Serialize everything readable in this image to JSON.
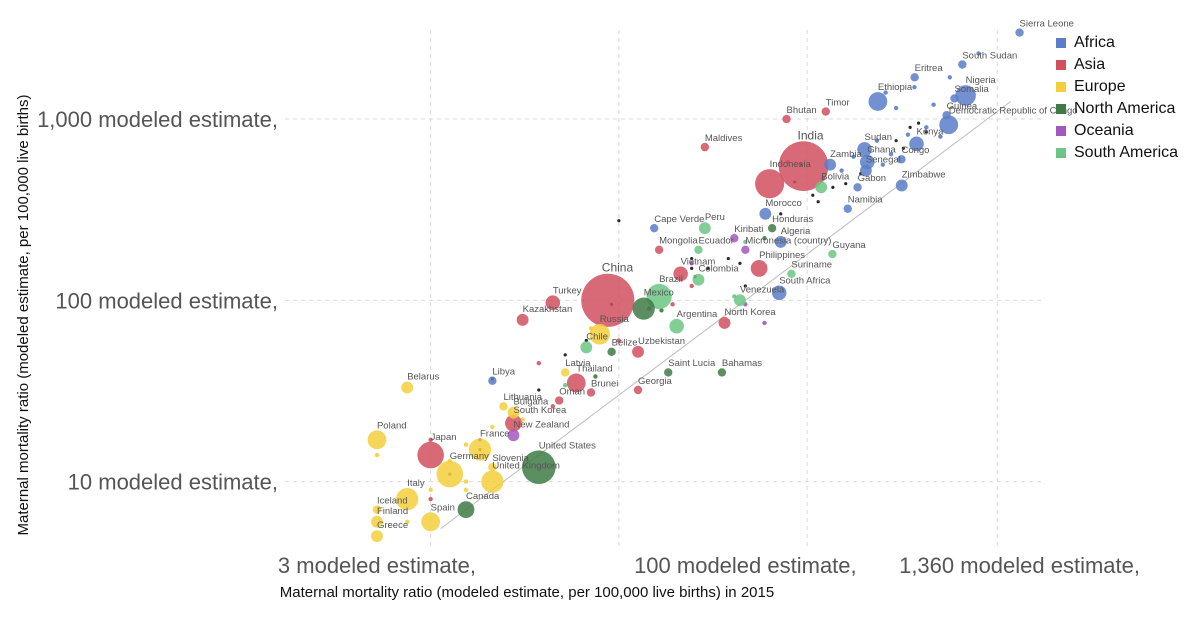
{
  "chart_data": {
    "type": "scatter",
    "title": "",
    "xlabel": "Maternal mortality ratio (modeled estimate, per 100,000 live births) in 2015",
    "ylabel": "Maternal mortality ratio (modeled estimate, per 100,000 live births)",
    "x_scale": "log",
    "y_scale": "log",
    "xlim": [
      1.25,
      1700
    ],
    "ylim": [
      4.3,
      3100
    ],
    "x_ticks": [
      {
        "value": 3,
        "label": "3 modeled estimate,"
      },
      {
        "value": 100,
        "label": "100 modeled estimate,"
      },
      {
        "value": 1360,
        "label": "1,360 modeled estimate,"
      }
    ],
    "y_ticks": [
      {
        "value": 10,
        "label": "10 modeled estimate,"
      },
      {
        "value": 100,
        "label": "100 modeled estimate,"
      },
      {
        "value": 1000,
        "label": "1,000 modeled estimate,"
      }
    ],
    "x_gridlines": [
      5,
      30,
      180,
      1100
    ],
    "y_gridlines": [
      10,
      100,
      1000
    ],
    "reference_line": "y = x",
    "legend_position": "top-right",
    "colors": {
      "Africa": "#5b7ec8",
      "Asia": "#d1505f",
      "Europe": "#f4cf3b",
      "North America": "#3e7a45",
      "Oceania": "#a358bd",
      "South America": "#6cc585",
      "Unlabeled": "#111111"
    },
    "legend": [
      "Africa",
      "Asia",
      "Europe",
      "North America",
      "Oceania",
      "South America"
    ],
    "points": [
      {
        "label": "Sierra Leone",
        "region": "Africa",
        "x": 1360,
        "y": 3000,
        "size": 1
      },
      {
        "label": "South Sudan",
        "region": "Africa",
        "x": 789,
        "y": 2000,
        "size": 1
      },
      {
        "label": "Nigeria",
        "region": "Africa",
        "x": 814,
        "y": 1350,
        "size": 6
      },
      {
        "label": "Somalia",
        "region": "Africa",
        "x": 732,
        "y": 1300,
        "size": 1
      },
      {
        "label": "Eritrea",
        "region": "Africa",
        "x": 501,
        "y": 1700,
        "size": 1
      },
      {
        "label": "Ethiopia",
        "region": "Africa",
        "x": 353,
        "y": 1250,
        "size": 5
      },
      {
        "label": "Guinea",
        "region": "Africa",
        "x": 679,
        "y": 1050,
        "size": 1
      },
      {
        "label": "Democratic Republic of Congo",
        "region": "Africa",
        "x": 693,
        "y": 930,
        "size": 5
      },
      {
        "label": "Timor",
        "region": "Asia",
        "x": 215,
        "y": 1100,
        "size": 1
      },
      {
        "label": "Bhutan",
        "region": "Asia",
        "x": 148,
        "y": 1000,
        "size": 1
      },
      {
        "label": "Maldives",
        "region": "Asia",
        "x": 68,
        "y": 700,
        "size": 1
      },
      {
        "label": "India",
        "region": "Asia",
        "x": 174,
        "y": 550,
        "size": 35
      },
      {
        "label": "Kenya",
        "region": "Africa",
        "x": 510,
        "y": 730,
        "size": 3
      },
      {
        "label": "Sudan",
        "region": "Africa",
        "x": 311,
        "y": 680,
        "size": 3
      },
      {
        "label": "Ghana",
        "region": "Africa",
        "x": 319,
        "y": 580,
        "size": 3
      },
      {
        "label": "Congo",
        "region": "Africa",
        "x": 442,
        "y": 600,
        "size": 1
      },
      {
        "label": "Senegal",
        "region": "Africa",
        "x": 315,
        "y": 520,
        "size": 2
      },
      {
        "label": "Zambia",
        "region": "Africa",
        "x": 224,
        "y": 560,
        "size": 2
      },
      {
        "label": "Indonesia",
        "region": "Asia",
        "x": 126,
        "y": 440,
        "size": 12
      },
      {
        "label": "Bolivia",
        "region": "South America",
        "x": 206,
        "y": 420,
        "size": 2
      },
      {
        "label": "Gabon",
        "region": "Africa",
        "x": 291,
        "y": 420,
        "size": 1
      },
      {
        "label": "Zimbabwe",
        "region": "Africa",
        "x": 443,
        "y": 430,
        "size": 2
      },
      {
        "label": "Namibia",
        "region": "Africa",
        "x": 265,
        "y": 320,
        "size": 1
      },
      {
        "label": "Morocco",
        "region": "Africa",
        "x": 121,
        "y": 300,
        "size": 2
      },
      {
        "label": "Honduras",
        "region": "North America",
        "x": 129,
        "y": 250,
        "size": 1
      },
      {
        "label": "Cape Verde",
        "region": "Africa",
        "x": 42,
        "y": 250,
        "size": 1
      },
      {
        "label": "Peru",
        "region": "South America",
        "x": 68,
        "y": 250,
        "size": 2
      },
      {
        "label": "Kiribati",
        "region": "Oceania",
        "x": 90,
        "y": 220,
        "size": 1
      },
      {
        "label": "Algeria",
        "region": "Africa",
        "x": 140,
        "y": 210,
        "size": 2
      },
      {
        "label": "Mongolia",
        "region": "Asia",
        "x": 44,
        "y": 190,
        "size": 1
      },
      {
        "label": "Ecuador",
        "region": "South America",
        "x": 64,
        "y": 190,
        "size": 1
      },
      {
        "label": "Micronesia (country)",
        "region": "Oceania",
        "x": 100,
        "y": 190,
        "size": 1
      },
      {
        "label": "Guyana",
        "region": "South America",
        "x": 229,
        "y": 180,
        "size": 1
      },
      {
        "label": "Philippines",
        "region": "Asia",
        "x": 114,
        "y": 150,
        "size": 4
      },
      {
        "label": "Vietnam",
        "region": "Asia",
        "x": 54,
        "y": 140,
        "size": 3
      },
      {
        "label": "Colombia",
        "region": "South America",
        "x": 64,
        "y": 130,
        "size": 2
      },
      {
        "label": "Suriname",
        "region": "South America",
        "x": 155,
        "y": 140,
        "size": 1
      },
      {
        "label": "South Africa",
        "region": "Africa",
        "x": 138,
        "y": 110,
        "size": 3
      },
      {
        "label": "China",
        "region": "Asia",
        "x": 27,
        "y": 100,
        "size": 40
      },
      {
        "label": "Brazil",
        "region": "South America",
        "x": 44,
        "y": 105,
        "size": 9
      },
      {
        "label": "Mexico",
        "region": "North America",
        "x": 38,
        "y": 90,
        "size": 7
      },
      {
        "label": "Venezuela",
        "region": "South America",
        "x": 95,
        "y": 100,
        "size": 2
      },
      {
        "label": "Turkey",
        "region": "Asia",
        "x": 16,
        "y": 97,
        "size": 3
      },
      {
        "label": "Kazakhstan",
        "region": "Asia",
        "x": 12,
        "y": 78,
        "size": 2
      },
      {
        "label": "Argentina",
        "region": "South America",
        "x": 52,
        "y": 72,
        "size": 3
      },
      {
        "label": "North Korea",
        "region": "Asia",
        "x": 82,
        "y": 75,
        "size": 2
      },
      {
        "label": "Russia",
        "region": "Europe",
        "x": 25,
        "y": 65,
        "size": 6
      },
      {
        "label": "Chile",
        "region": "South America",
        "x": 22,
        "y": 55,
        "size": 2
      },
      {
        "label": "Belize",
        "region": "North America",
        "x": 28,
        "y": 52,
        "size": 1
      },
      {
        "label": "Uzbekistan",
        "region": "Asia",
        "x": 36,
        "y": 52,
        "size": 2
      },
      {
        "label": "Saint Lucia",
        "region": "North America",
        "x": 48,
        "y": 40,
        "size": 1
      },
      {
        "label": "Bahamas",
        "region": "North America",
        "x": 80,
        "y": 40,
        "size": 1
      },
      {
        "label": "Latvia",
        "region": "Europe",
        "x": 18,
        "y": 40,
        "size": 1
      },
      {
        "label": "Thailand",
        "region": "Asia",
        "x": 20,
        "y": 35,
        "size": 5
      },
      {
        "label": "Brunei",
        "region": "Asia",
        "x": 23,
        "y": 31,
        "size": 1
      },
      {
        "label": "Georgia",
        "region": "Asia",
        "x": 36,
        "y": 32,
        "size": 1
      },
      {
        "label": "Libya",
        "region": "Africa",
        "x": 9,
        "y": 36,
        "size": 1
      },
      {
        "label": "Belarus",
        "region": "Europe",
        "x": 4,
        "y": 33,
        "size": 2
      },
      {
        "label": "Oman",
        "region": "Asia",
        "x": 17,
        "y": 28,
        "size": 1
      },
      {
        "label": "Lithuania",
        "region": "Europe",
        "x": 10,
        "y": 26,
        "size": 1
      },
      {
        "label": "Bulgaria",
        "region": "Europe",
        "x": 11,
        "y": 24,
        "size": 2
      },
      {
        "label": "South Korea",
        "region": "Asia",
        "x": 11,
        "y": 21,
        "size": 4
      },
      {
        "label": "New Zealand",
        "region": "Oceania",
        "x": 11,
        "y": 18,
        "size": 2
      },
      {
        "label": "Poland",
        "region": "Europe",
        "x": 3,
        "y": 17,
        "size": 5
      },
      {
        "label": "France",
        "region": "Europe",
        "x": 8,
        "y": 15,
        "size": 7
      },
      {
        "label": "Japan",
        "region": "Asia",
        "x": 5,
        "y": 14,
        "size": 10
      },
      {
        "label": "United States",
        "region": "North America",
        "x": 14,
        "y": 12,
        "size": 16
      },
      {
        "label": "Slovenia",
        "region": "Europe",
        "x": 9,
        "y": 12,
        "size": 1
      },
      {
        "label": "Germany",
        "region": "Europe",
        "x": 6,
        "y": 11,
        "size": 10
      },
      {
        "label": "United Kingdom",
        "region": "Europe",
        "x": 9,
        "y": 10,
        "size": 7
      },
      {
        "label": "Italy",
        "region": "Europe",
        "x": 4,
        "y": 8,
        "size": 7
      },
      {
        "label": "Iceland",
        "region": "Europe",
        "x": 3,
        "y": 7,
        "size": 1
      },
      {
        "label": "Canada",
        "region": "North America",
        "x": 7,
        "y": 7,
        "size": 4
      },
      {
        "label": "Finland",
        "region": "Europe",
        "x": 3,
        "y": 6,
        "size": 2
      },
      {
        "label": "Spain",
        "region": "Europe",
        "x": 5,
        "y": 6,
        "size": 5
      },
      {
        "label": "Greece",
        "region": "Europe",
        "x": 3,
        "y": 5,
        "size": 2
      }
    ],
    "unlabeled_points": [
      {
        "region": "Africa",
        "x": 500,
        "y": 1500
      },
      {
        "region": "Africa",
        "x": 600,
        "y": 1200
      },
      {
        "region": "Africa",
        "x": 420,
        "y": 1150
      },
      {
        "region": "Africa",
        "x": 380,
        "y": 1400
      },
      {
        "region": "Africa",
        "x": 560,
        "y": 900
      },
      {
        "region": "Africa",
        "x": 640,
        "y": 800
      },
      {
        "region": "Africa",
        "x": 470,
        "y": 820
      },
      {
        "region": "Africa",
        "x": 350,
        "y": 760
      },
      {
        "region": "Africa",
        "x": 400,
        "y": 640
      },
      {
        "region": "Africa",
        "x": 280,
        "y": 620
      },
      {
        "region": "Africa",
        "x": 250,
        "y": 520
      },
      {
        "region": "Africa",
        "x": 210,
        "y": 470
      },
      {
        "region": "Africa",
        "x": 370,
        "y": 560
      },
      {
        "region": "Africa",
        "x": 700,
        "y": 1700
      },
      {
        "region": "Africa",
        "x": 920,
        "y": 2300
      },
      {
        "region": "Asia",
        "x": 150,
        "y": 580
      },
      {
        "region": "Asia",
        "x": 60,
        "y": 120
      },
      {
        "region": "Asia",
        "x": 40,
        "y": 90
      },
      {
        "region": "Asia",
        "x": 30,
        "y": 60
      },
      {
        "region": "Asia",
        "x": 14,
        "y": 45
      },
      {
        "region": "Asia",
        "x": 16,
        "y": 26
      },
      {
        "region": "Asia",
        "x": 5,
        "y": 17
      },
      {
        "region": "Asia",
        "x": 5,
        "y": 8
      },
      {
        "region": "Asia",
        "x": 50,
        "y": 95
      },
      {
        "region": "Europe",
        "x": 3,
        "y": 14
      },
      {
        "region": "Europe",
        "x": 7,
        "y": 16
      },
      {
        "region": "Europe",
        "x": 6,
        "y": 13
      },
      {
        "region": "Europe",
        "x": 7,
        "y": 10
      },
      {
        "region": "Europe",
        "x": 9,
        "y": 20
      },
      {
        "region": "Europe",
        "x": 12,
        "y": 22
      },
      {
        "region": "Europe",
        "x": 5,
        "y": 9
      },
      {
        "region": "Europe",
        "x": 4,
        "y": 6
      },
      {
        "region": "Europe",
        "x": 7,
        "y": 9
      },
      {
        "region": "Europe",
        "x": 9,
        "y": 36
      },
      {
        "region": "Europe",
        "x": 23,
        "y": 70
      },
      {
        "region": "South America",
        "x": 18,
        "y": 34
      },
      {
        "region": "South America",
        "x": 100,
        "y": 210
      },
      {
        "region": "South America",
        "x": 90,
        "y": 105
      },
      {
        "region": "North America",
        "x": 45,
        "y": 88
      },
      {
        "region": "North America",
        "x": 120,
        "y": 220
      },
      {
        "region": "North America",
        "x": 24,
        "y": 38
      },
      {
        "region": "Oceania",
        "x": 100,
        "y": 95
      },
      {
        "region": "Oceania",
        "x": 120,
        "y": 75
      },
      {
        "region": "Oceania",
        "x": 60,
        "y": 160
      },
      {
        "region": "Unlabeled",
        "x": 170,
        "y": 560
      },
      {
        "region": "Unlabeled",
        "x": 160,
        "y": 450
      },
      {
        "region": "Unlabeled",
        "x": 190,
        "y": 380
      },
      {
        "region": "Unlabeled",
        "x": 260,
        "y": 440
      },
      {
        "region": "Unlabeled",
        "x": 300,
        "y": 500
      },
      {
        "region": "Unlabeled",
        "x": 420,
        "y": 760
      },
      {
        "region": "Unlabeled",
        "x": 450,
        "y": 690
      },
      {
        "region": "Unlabeled",
        "x": 520,
        "y": 950
      },
      {
        "region": "Unlabeled",
        "x": 560,
        "y": 850
      },
      {
        "region": "Unlabeled",
        "x": 480,
        "y": 900
      },
      {
        "region": "Unlabeled",
        "x": 230,
        "y": 420
      },
      {
        "region": "Unlabeled",
        "x": 200,
        "y": 350
      },
      {
        "region": "Unlabeled",
        "x": 140,
        "y": 300
      },
      {
        "region": "Unlabeled",
        "x": 70,
        "y": 150
      },
      {
        "region": "Unlabeled",
        "x": 85,
        "y": 170
      },
      {
        "region": "Unlabeled",
        "x": 95,
        "y": 160
      },
      {
        "region": "Unlabeled",
        "x": 60,
        "y": 170
      },
      {
        "region": "Unlabeled",
        "x": 62,
        "y": 135
      },
      {
        "region": "Unlabeled",
        "x": 100,
        "y": 120
      },
      {
        "region": "Unlabeled",
        "x": 28,
        "y": 95
      },
      {
        "region": "Unlabeled",
        "x": 22,
        "y": 60
      },
      {
        "region": "Unlabeled",
        "x": 18,
        "y": 50
      },
      {
        "region": "Unlabeled",
        "x": 14,
        "y": 32
      },
      {
        "region": "Unlabeled",
        "x": 9,
        "y": 37
      },
      {
        "region": "Unlabeled",
        "x": 8,
        "y": 17
      },
      {
        "region": "Unlabeled",
        "x": 8,
        "y": 15
      },
      {
        "region": "Unlabeled",
        "x": 6,
        "y": 11
      },
      {
        "region": "Unlabeled",
        "x": 30,
        "y": 275
      },
      {
        "region": "Unlabeled",
        "x": 60,
        "y": 150
      }
    ]
  }
}
